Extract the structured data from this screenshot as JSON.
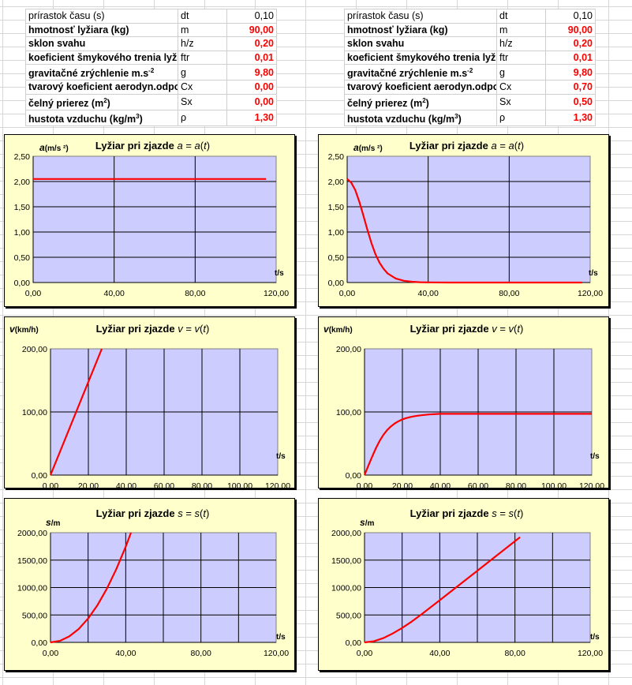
{
  "params": [
    {
      "labels": [
        "prírastok času (s)",
        "hmotnosť lyžiara (kg)",
        "sklon svahu",
        "koeficient šmykového trenia lyží",
        "gravitačné zrýchlenie m.s-2",
        "tvarový koeficient aerodyn.odporu",
        "čelný prierez (m2)",
        "hustota vzduchu (kg/m3)"
      ],
      "symbols": [
        "dt",
        "m",
        "h/z",
        "ftr",
        "g",
        "Cx",
        "Sx",
        "ρ"
      ],
      "values": [
        "0,10",
        "90,00",
        "0,20",
        "0,01",
        "9,80",
        "0,00",
        "0,00",
        "1,30"
      ]
    },
    {
      "labels": [
        "prírastok času (s)",
        "hmotnosť lyžiara (kg)",
        "sklon svahu",
        "koeficient šmykového trenia lyží",
        "gravitačné zrýchlenie m.s-2",
        "tvarový koeficient aerodyn.odporu",
        "čelný prierez (m2)",
        "hustota vzduchu (kg/m3)"
      ],
      "symbols": [
        "dt",
        "m",
        "h/z",
        "ftr",
        "g",
        "Cx",
        "Sx",
        "ρ"
      ],
      "values": [
        "0,10",
        "90,00",
        "0,20",
        "0,01",
        "9,80",
        "0,70",
        "0,50",
        "1,30"
      ]
    }
  ],
  "colors": {
    "curve": "#ff0000",
    "plot_area": "#ccccff",
    "panel": "#ffffcc",
    "value_red": "#ff0000"
  },
  "chart_data": [
    {
      "type": "line",
      "title": "Lyžiar pri zjazde a = a(t)",
      "xlabel": "t/s",
      "ylabel": "a(m/s 2)",
      "xlim": [
        0,
        120
      ],
      "ylim": [
        0,
        2.5
      ],
      "xticks": [
        "0,00",
        "40,00",
        "80,00",
        "120,00"
      ],
      "yticks": [
        "0,00",
        "0,50",
        "1,00",
        "1,50",
        "2,00",
        "2,50"
      ],
      "series": [
        {
          "x": [
            0,
            115
          ],
          "y": [
            2.05,
            2.05
          ]
        }
      ]
    },
    {
      "type": "line",
      "title": "Lyžiar pri zjazde a = a(t)",
      "xlabel": "t/s",
      "ylabel": "a(m/s 2)",
      "xlim": [
        0,
        120
      ],
      "ylim": [
        0,
        2.5
      ],
      "xticks": [
        "0,00",
        "40,00",
        "80,00",
        "120,00"
      ],
      "yticks": [
        "0,00",
        "0,50",
        "1,00",
        "1,50",
        "2,00",
        "2,50"
      ],
      "series": [
        {
          "x": [
            0,
            2,
            4,
            6,
            8,
            10,
            12,
            14,
            16,
            18,
            20,
            24,
            28,
            32,
            36,
            40,
            50,
            60,
            80,
            100,
            116
          ],
          "y": [
            2.05,
            1.98,
            1.83,
            1.6,
            1.33,
            1.04,
            0.78,
            0.56,
            0.39,
            0.27,
            0.18,
            0.08,
            0.035,
            0.015,
            0.006,
            0.003,
            0,
            0,
            0,
            0,
            0
          ]
        }
      ]
    },
    {
      "type": "line",
      "title": "Lyžiar pri zjazde v = v(t)",
      "xlabel": "t/s",
      "ylabel": "v(km/h)",
      "xlim": [
        0,
        120
      ],
      "ylim": [
        0,
        200
      ],
      "xticks": [
        "0,00",
        "20,00",
        "40,00",
        "60,00",
        "80,00",
        "100,00",
        "120,00"
      ],
      "yticks": [
        "0,00",
        "100,00",
        "200,00"
      ],
      "series": [
        {
          "x": [
            0,
            27.1
          ],
          "y": [
            0,
            200
          ]
        }
      ]
    },
    {
      "type": "line",
      "title": "Lyžiar pri zjazde v = v(t)",
      "xlabel": "t/s",
      "ylabel": "v(km/h)",
      "xlim": [
        0,
        120
      ],
      "ylim": [
        0,
        200
      ],
      "xticks": [
        "0,00",
        "20,00",
        "40,00",
        "60,00",
        "80,00",
        "100,00",
        "120,00"
      ],
      "yticks": [
        "0,00",
        "100,00",
        "200,00"
      ],
      "series": [
        {
          "x": [
            0,
            2,
            4,
            6,
            8,
            10,
            12,
            14,
            16,
            18,
            20,
            22,
            24,
            26,
            28,
            30,
            34,
            38,
            40,
            60,
            80,
            100,
            120
          ],
          "y": [
            0,
            14.7,
            29,
            42.5,
            54.3,
            63.9,
            71.5,
            77.3,
            81.9,
            85.4,
            88.2,
            90.2,
            91.8,
            93,
            94,
            94.8,
            96,
            96.8,
            97,
            97,
            97,
            97,
            97
          ]
        }
      ]
    },
    {
      "type": "line",
      "title": "Lyžiar pri zjazde s = s(t)",
      "xlabel": "t/s",
      "ylabel": "s/m",
      "xlim": [
        0,
        120
      ],
      "ylim": [
        0,
        2000
      ],
      "xticks": [
        "0,00",
        "40,00",
        "80,00",
        "120,00"
      ],
      "yticks": [
        "0,00",
        "500,00",
        "1000,00",
        "1500,00",
        "2000,00"
      ],
      "series": [
        {
          "x": [
            0,
            5,
            10,
            15,
            20,
            25,
            30,
            35,
            40,
            42.8
          ],
          "y": [
            0,
            27,
            109,
            245,
            436,
            681,
            981,
            1335,
            1744,
            2000
          ]
        }
      ]
    },
    {
      "type": "line",
      "title": "Lyžiar pri zjazde s = s(t)",
      "xlabel": "t/s",
      "ylabel": "s/m",
      "xlim": [
        0,
        120
      ],
      "ylim": [
        0,
        2000
      ],
      "xticks": [
        "0,00",
        "40,00",
        "80,00",
        "120,00"
      ],
      "yticks": [
        "0,00",
        "500,00",
        "1000,00",
        "1500,00",
        "2000,00"
      ],
      "series": [
        {
          "x": [
            0,
            5,
            10,
            15,
            20,
            25,
            30,
            40,
            50,
            60,
            70,
            80,
            82.7
          ],
          "y": [
            0,
            20,
            77,
            162,
            264,
            377,
            503,
            768,
            1037,
            1306,
            1575,
            1844,
            1917
          ]
        }
      ]
    }
  ]
}
